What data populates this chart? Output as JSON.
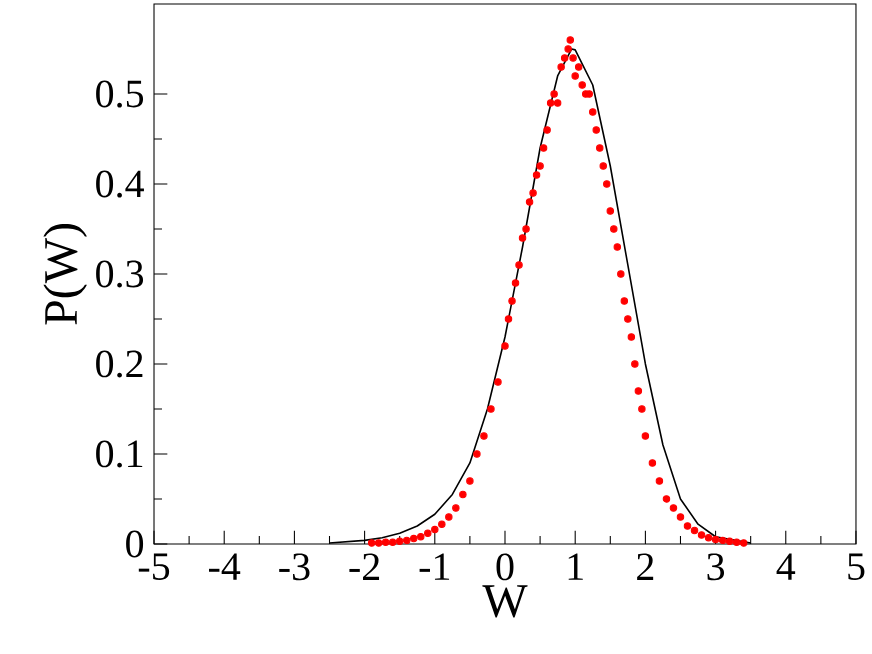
{
  "chart_data": {
    "type": "scatter",
    "xlabel": "W",
    "ylabel": "P(W)",
    "xlim": [
      -5,
      5
    ],
    "ylim": [
      0,
      0.6
    ],
    "xticks": [
      -5,
      -4,
      -3,
      -2,
      -1,
      0,
      1,
      2,
      3,
      4,
      5
    ],
    "yticks": [
      0,
      0.1,
      0.2,
      0.3,
      0.4,
      0.5
    ],
    "grid": false,
    "series": [
      {
        "type": "line",
        "color": "#000000",
        "marker": "none",
        "line_style": "solid",
        "x": [
          -2.5,
          -2,
          -1.75,
          -1.5,
          -1.25,
          -1,
          -0.75,
          -0.5,
          -0.25,
          0,
          0.25,
          0.5,
          0.75,
          0.95,
          1.0,
          1.25,
          1.5,
          1.75,
          2.0,
          2.25,
          2.5,
          2.75,
          3.0,
          3.5
        ],
        "values": [
          0.001,
          0.004,
          0.007,
          0.012,
          0.02,
          0.033,
          0.055,
          0.09,
          0.15,
          0.23,
          0.33,
          0.44,
          0.52,
          0.55,
          0.549,
          0.51,
          0.42,
          0.31,
          0.2,
          0.11,
          0.05,
          0.022,
          0.008,
          0.001
        ]
      },
      {
        "color": "#ff0000",
        "marker": "circle",
        "x": [
          -1.9,
          -1.8,
          -1.7,
          -1.6,
          -1.5,
          -1.4,
          -1.3,
          -1.2,
          -1.1,
          -1.0,
          -0.9,
          -0.8,
          -0.7,
          -0.6,
          -0.5,
          -0.4,
          -0.3,
          -0.2,
          -0.1,
          0.0,
          0.05,
          0.1,
          0.15,
          0.2,
          0.25,
          0.3,
          0.35,
          0.4,
          0.45,
          0.5,
          0.55,
          0.6,
          0.65,
          0.7,
          0.75,
          0.8,
          0.85,
          0.9,
          0.93,
          0.97,
          1.0,
          1.05,
          1.1,
          1.15,
          1.2,
          1.25,
          1.3,
          1.35,
          1.4,
          1.45,
          1.5,
          1.55,
          1.6,
          1.65,
          1.7,
          1.75,
          1.8,
          1.85,
          1.9,
          1.95,
          2.0,
          2.1,
          2.2,
          2.3,
          2.4,
          2.5,
          2.6,
          2.7,
          2.8,
          2.9,
          3.0,
          3.1,
          3.2,
          3.3,
          3.4
        ],
        "values": [
          0.001,
          0.001,
          0.002,
          0.002,
          0.003,
          0.004,
          0.006,
          0.008,
          0.012,
          0.016,
          0.022,
          0.03,
          0.04,
          0.055,
          0.07,
          0.1,
          0.12,
          0.15,
          0.18,
          0.22,
          0.25,
          0.27,
          0.29,
          0.31,
          0.34,
          0.35,
          0.38,
          0.39,
          0.41,
          0.42,
          0.44,
          0.46,
          0.49,
          0.5,
          0.49,
          0.53,
          0.54,
          0.55,
          0.56,
          0.54,
          0.52,
          0.53,
          0.51,
          0.5,
          0.5,
          0.48,
          0.46,
          0.44,
          0.42,
          0.4,
          0.37,
          0.35,
          0.33,
          0.3,
          0.27,
          0.25,
          0.23,
          0.2,
          0.17,
          0.15,
          0.12,
          0.09,
          0.07,
          0.05,
          0.04,
          0.03,
          0.02,
          0.015,
          0.01,
          0.007,
          0.005,
          0.004,
          0.003,
          0.002,
          0.001
        ]
      }
    ]
  }
}
